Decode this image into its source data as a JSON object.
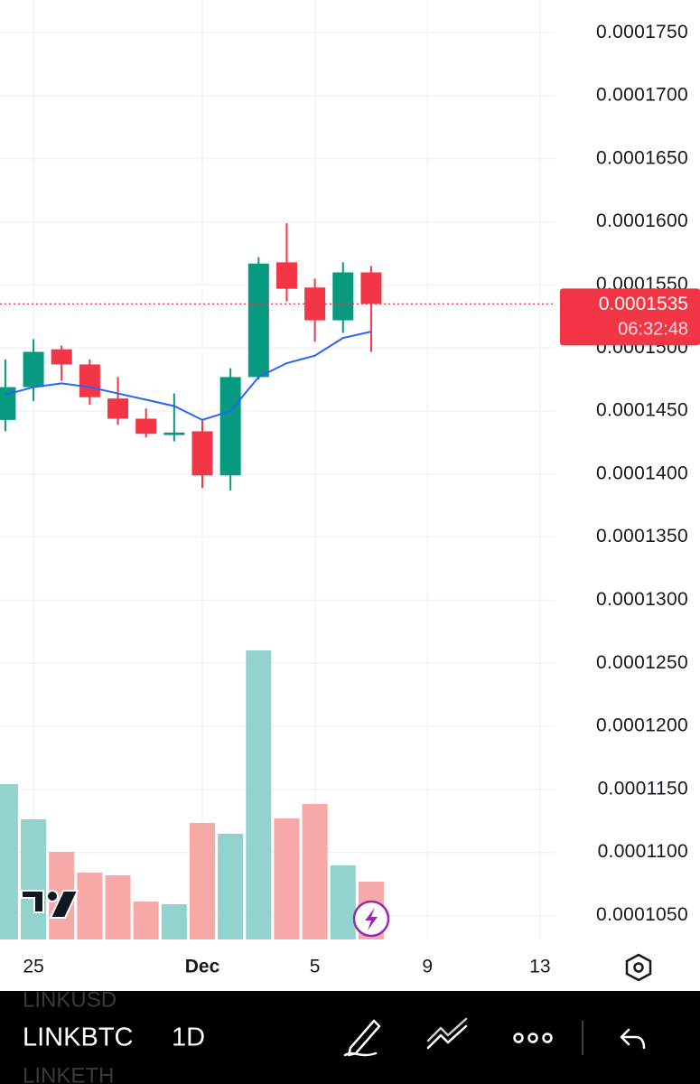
{
  "chart_data": {
    "type": "candlestick",
    "x": [
      0,
      1,
      2,
      3,
      4,
      5,
      6,
      7,
      8,
      9,
      10,
      11,
      12,
      13
    ],
    "xlim": [
      -0.19,
      19.55
    ],
    "xticks": [
      {
        "value": 1,
        "label": "25"
      },
      {
        "value": 7,
        "label": "Dec"
      },
      {
        "value": 11,
        "label": "5"
      },
      {
        "value": 15,
        "label": "9"
      },
      {
        "value": 19,
        "label": "13"
      }
    ],
    "ylim": [
      0.0001031,
      0.0001776
    ],
    "yticks": [
      {
        "value": 0.000175,
        "label": "0.0001750"
      },
      {
        "value": 0.00017,
        "label": "0.0001700"
      },
      {
        "value": 0.000165,
        "label": "0.0001650"
      },
      {
        "value": 0.00016,
        "label": "0.0001600"
      },
      {
        "value": 0.000155,
        "label": "0.0001550"
      },
      {
        "value": 0.00015,
        "label": "0.0001500"
      },
      {
        "value": 0.000145,
        "label": "0.0001450"
      },
      {
        "value": 0.00014,
        "label": "0.0001400"
      },
      {
        "value": 0.000135,
        "label": "0.0001350"
      },
      {
        "value": 0.00013,
        "label": "0.0001300"
      },
      {
        "value": 0.000125,
        "label": "0.0001250"
      },
      {
        "value": 0.00012,
        "label": "0.0001200"
      },
      {
        "value": 0.000115,
        "label": "0.0001150"
      },
      {
        "value": 0.00011,
        "label": "0.0001100"
      },
      {
        "value": 0.000105,
        "label": "0.0001050"
      }
    ],
    "grid": true,
    "up_color": "#089981",
    "down_color": "#f23645",
    "open": [
      0.0001443,
      0.0001469,
      0.0001499,
      0.0001487,
      0.000146,
      0.0001444,
      0.0001431,
      0.0001434,
      0.0001399,
      0.0001477,
      0.0001568,
      0.0001548,
      0.0001522,
      0.000156
    ],
    "high": [
      0.0001491,
      0.0001507,
      0.0001502,
      0.0001491,
      0.0001477,
      0.0001452,
      0.0001464,
      0.0001443,
      0.0001484,
      0.0001572,
      0.0001599,
      0.0001555,
      0.0001568,
      0.0001565
    ],
    "low": [
      0.0001434,
      0.0001458,
      0.0001474,
      0.0001455,
      0.0001439,
      0.0001429,
      0.0001426,
      0.0001389,
      0.0001387,
      0.0001475,
      0.0001537,
      0.0001505,
      0.0001512,
      0.0001497
    ],
    "close": [
      0.0001469,
      0.0001497,
      0.0001487,
      0.0001461,
      0.0001444,
      0.0001432,
      0.0001433,
      0.0001399,
      0.0001477,
      0.0001567,
      0.0001547,
      0.0001522,
      0.000156,
      0.0001535
    ],
    "moving_average": {
      "color": "#2962ff",
      "values": [
        0.0001463,
        0.0001469,
        0.0001472,
        0.0001469,
        0.0001464,
        0.0001459,
        0.0001454,
        0.0001443,
        0.000145,
        0.0001477,
        0.0001488,
        0.0001494,
        0.0001508,
        0.0001513
      ]
    },
    "volume": {
      "up_color": "#92d3cd",
      "down_color": "#f7a9a7",
      "values": [
        172,
        133,
        97,
        74,
        71,
        42,
        39,
        129,
        117,
        320,
        134,
        150,
        82,
        64
      ]
    },
    "last_price": {
      "value": 0.0001535,
      "label": "0.0001535"
    },
    "countdown": "06:32:48"
  },
  "toolbar": {
    "symbol": "LINKBTC",
    "symbol_above": "LINKUSD",
    "symbol_below": "LINKETH",
    "interval": "1D"
  }
}
